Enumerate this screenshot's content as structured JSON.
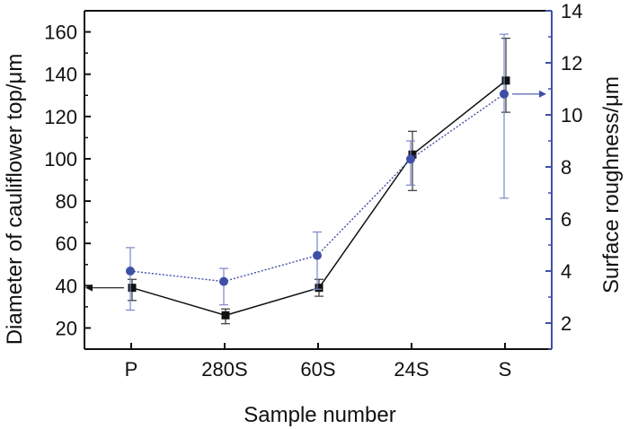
{
  "chart_data": {
    "type": "line",
    "categories": [
      "P",
      "280S",
      "60S",
      "24S",
      "S"
    ],
    "xlabel": "Sample number",
    "ylabel_left": "Diameter of cauliflower top/μm",
    "ylabel_right": "Surface roughness/μm",
    "ylim_left": [
      10,
      170
    ],
    "ylim_right": [
      1,
      14
    ],
    "yticks_left": [
      20,
      40,
      60,
      80,
      100,
      120,
      140,
      160
    ],
    "yticks_right": [
      2,
      4,
      6,
      8,
      10,
      12,
      14
    ],
    "grid": false,
    "series": [
      {
        "axis": "left",
        "marker": "square",
        "line_style": "solid",
        "color": "#111111",
        "values": [
          39,
          26,
          39,
          102,
          137
        ],
        "err_low": [
          33,
          22,
          35,
          85,
          122
        ],
        "err_high": [
          43,
          29,
          43,
          113,
          157
        ]
      },
      {
        "axis": "right",
        "marker": "circle",
        "line_style": "dotted",
        "color": "#3f4fa8",
        "values": [
          4.0,
          3.6,
          4.6,
          8.3,
          10.8
        ],
        "err_low": [
          2.5,
          2.7,
          3.3,
          7.3,
          6.8
        ],
        "err_high": [
          4.9,
          4.1,
          5.5,
          9.0,
          13.1
        ]
      }
    ]
  }
}
